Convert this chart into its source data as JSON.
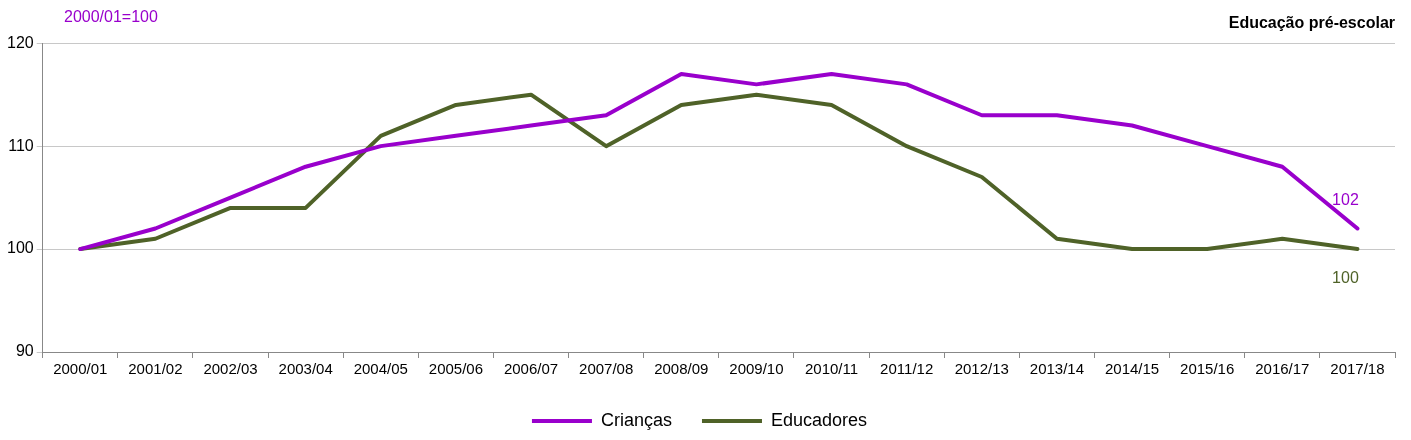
{
  "chart_data": {
    "type": "line",
    "title": "Educação pré-escolar",
    "ylabel": "2000/01=100",
    "categories": [
      "2000/01",
      "2001/02",
      "2002/03",
      "2003/04",
      "2004/05",
      "2005/06",
      "2006/07",
      "2007/08",
      "2008/09",
      "2009/10",
      "2010/11",
      "2011/12",
      "2012/13",
      "2013/14",
      "2014/15",
      "2015/16",
      "2016/17",
      "2017/18"
    ],
    "series": [
      {
        "name": "Crianças",
        "color": "#9900cc",
        "values": [
          100,
          102,
          105,
          108,
          110,
          111,
          112,
          113,
          117,
          116,
          117,
          116,
          113,
          113,
          112,
          110,
          108,
          102
        ]
      },
      {
        "name": "Educadores",
        "color": "#4f6228",
        "values": [
          100,
          101,
          104,
          104,
          111,
          114,
          115,
          110,
          114,
          115,
          114,
          110,
          107,
          101,
          100,
          100,
          101,
          100
        ]
      }
    ],
    "annotations": [
      {
        "text": "102",
        "x": "2017/18",
        "y": 102
      },
      {
        "text": "100",
        "x": "2017/18",
        "y": 100
      }
    ],
    "ylim": [
      90,
      120
    ],
    "yticks": [
      90,
      100,
      110,
      120
    ],
    "grid": "y",
    "legend": "bottom",
    "marker": "none",
    "line_style": "solid"
  }
}
